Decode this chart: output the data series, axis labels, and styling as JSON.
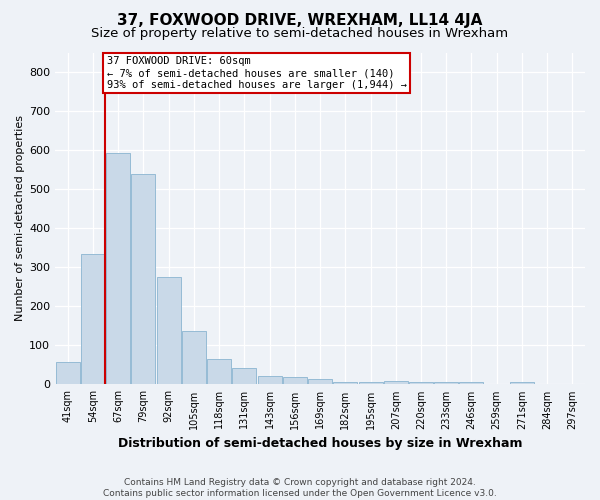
{
  "title": "37, FOXWOOD DRIVE, WREXHAM, LL14 4JA",
  "subtitle": "Size of property relative to semi-detached houses in Wrexham",
  "xlabel": "Distribution of semi-detached houses by size in Wrexham",
  "ylabel": "Number of semi-detached properties",
  "bar_labels": [
    "41sqm",
    "54sqm",
    "67sqm",
    "79sqm",
    "92sqm",
    "105sqm",
    "118sqm",
    "131sqm",
    "143sqm",
    "156sqm",
    "169sqm",
    "182sqm",
    "195sqm",
    "207sqm",
    "220sqm",
    "233sqm",
    "246sqm",
    "259sqm",
    "271sqm",
    "284sqm",
    "297sqm"
  ],
  "bar_heights": [
    57,
    335,
    593,
    540,
    275,
    137,
    65,
    42,
    22,
    20,
    13,
    7,
    6,
    8,
    6,
    6,
    5,
    0,
    7,
    0,
    0
  ],
  "bar_color": "#c9d9e8",
  "bar_edge_color": "#8ab4d0",
  "red_line_x": 1.46,
  "annotation_text": "37 FOXWOOD DRIVE: 60sqm\n← 7% of semi-detached houses are smaller (140)\n93% of semi-detached houses are larger (1,944) →",
  "annotation_box_color": "#ffffff",
  "annotation_box_edge": "#cc0000",
  "red_line_color": "#cc0000",
  "ylim": [
    0,
    850
  ],
  "yticks": [
    0,
    100,
    200,
    300,
    400,
    500,
    600,
    700,
    800
  ],
  "footer": "Contains HM Land Registry data © Crown copyright and database right 2024.\nContains public sector information licensed under the Open Government Licence v3.0.",
  "background_color": "#eef2f7",
  "plot_background": "#eef2f7",
  "title_fontsize": 11,
  "subtitle_fontsize": 9.5
}
